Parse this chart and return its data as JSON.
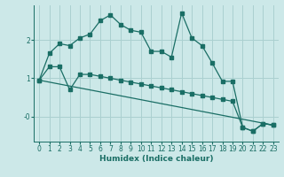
{
  "xlabel": "Humidex (Indice chaleur)",
  "bg_color": "#cce8e8",
  "grid_color": "#aad0d0",
  "line_color": "#1a6e65",
  "xlim": [
    -0.5,
    23.5
  ],
  "ylim": [
    -0.65,
    2.9
  ],
  "line1_x": [
    0,
    1,
    2,
    3,
    4,
    5,
    6,
    7,
    8,
    9,
    10,
    11,
    12,
    13,
    14,
    15,
    16,
    17,
    18,
    19,
    20,
    21,
    22,
    23
  ],
  "line1_y": [
    0.95,
    1.65,
    1.9,
    1.85,
    2.05,
    2.15,
    2.5,
    2.65,
    2.4,
    2.25,
    2.2,
    1.7,
    1.7,
    1.55,
    2.7,
    2.05,
    1.85,
    1.4,
    0.92,
    0.92,
    -0.28,
    -0.38,
    -0.18,
    -0.22
  ],
  "line2_x": [
    0,
    1,
    2,
    3,
    4,
    5,
    6,
    7,
    8,
    9,
    10,
    11,
    12,
    13,
    14,
    15,
    16,
    17,
    18,
    19,
    20,
    21,
    22,
    23
  ],
  "line2_y": [
    0.95,
    1.3,
    1.3,
    0.7,
    1.1,
    1.1,
    1.05,
    1.0,
    0.95,
    0.9,
    0.85,
    0.8,
    0.75,
    0.7,
    0.65,
    0.6,
    0.55,
    0.5,
    0.45,
    0.4,
    -0.28,
    -0.38,
    -0.18,
    -0.22
  ],
  "line3_x": [
    0,
    23
  ],
  "line3_y": [
    0.95,
    -0.22
  ]
}
